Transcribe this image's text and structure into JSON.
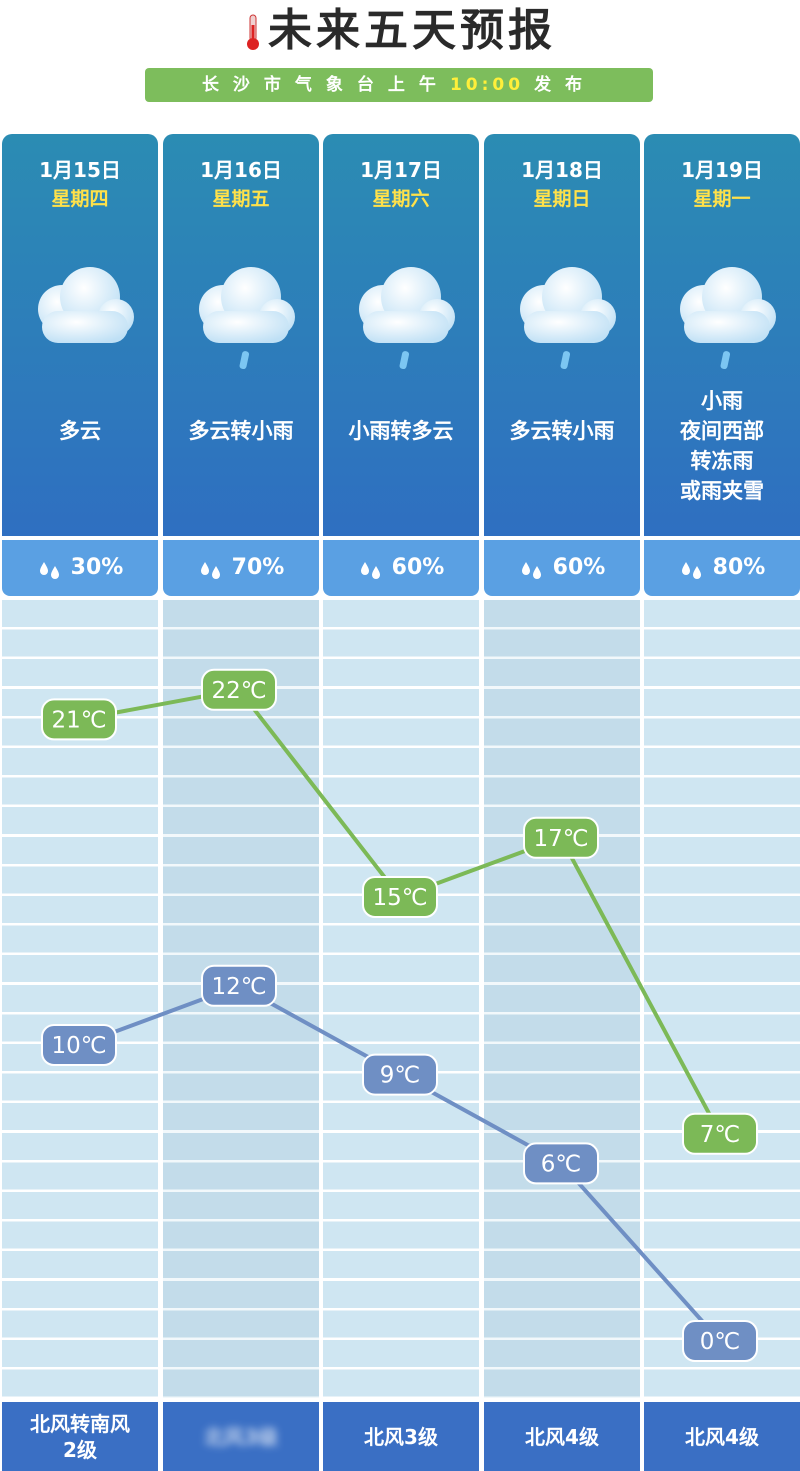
{
  "header": {
    "title": "未来五天预报",
    "subtitle_pre": "长沙市气象台上午",
    "subtitle_time": "10:00",
    "subtitle_post": "发布"
  },
  "colors": {
    "high_line": "#7cb957",
    "low_line": "#6f8fc4",
    "header_grad_top": "#2b8cb3",
    "header_grad_bottom": "#2f6fc1",
    "precip_bg": "#5aa0e3"
  },
  "days": [
    {
      "date": "1月15日",
      "weekday": "星期四",
      "icon": "cloud-icon",
      "desc": [
        "多云"
      ],
      "precip": "30%",
      "high": "21℃",
      "low": "10℃",
      "high_val": 21,
      "low_val": 10,
      "wind": [
        "北风转南风",
        "2级"
      ]
    },
    {
      "date": "1月16日",
      "weekday": "星期五",
      "icon": "cloud-rain-icon",
      "desc": [
        "多云转小雨"
      ],
      "precip": "70%",
      "high": "22℃",
      "low": "12℃",
      "high_val": 22,
      "low_val": 12,
      "wind": [
        "北风3级"
      ]
    },
    {
      "date": "1月17日",
      "weekday": "星期六",
      "icon": "cloud-rain-icon",
      "desc": [
        "小雨转多云"
      ],
      "precip": "60%",
      "high": "15℃",
      "low": "9℃",
      "high_val": 15,
      "low_val": 9,
      "wind": [
        "北风3级"
      ]
    },
    {
      "date": "1月18日",
      "weekday": "星期日",
      "icon": "cloud-rain-icon",
      "desc": [
        "多云转小雨"
      ],
      "precip": "60%",
      "high": "17℃",
      "low": "6℃",
      "high_val": 17,
      "low_val": 6,
      "wind": [
        "北风4级"
      ]
    },
    {
      "date": "1月19日",
      "weekday": "星期一",
      "icon": "cloud-rain-icon",
      "desc": [
        "小雨",
        "夜间西部",
        "转冻雨",
        "或雨夹雪"
      ],
      "precip": "80%",
      "high": "7℃",
      "low": "0℃",
      "high_val": 7,
      "low_val": 0,
      "wind": [
        "北风4级"
      ]
    }
  ]
}
